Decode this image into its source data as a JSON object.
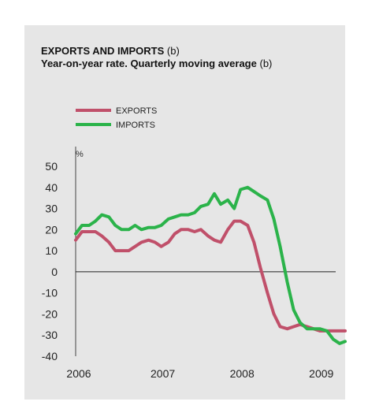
{
  "chart_data": {
    "type": "line",
    "title_bold": "EXPORTS AND IMPORTS",
    "title_suffix": "(b)",
    "subtitle_bold": "Year-on-year rate. Quarterly moving average",
    "subtitle_suffix": "(b)",
    "ylabel": "%",
    "xlabel": "",
    "ylim": [
      -40,
      50
    ],
    "yticks": [
      "50",
      "40",
      "30",
      "20",
      "10",
      "0",
      "-10",
      "-20",
      "-30",
      "-40"
    ],
    "ytick_values": [
      50,
      40,
      30,
      20,
      10,
      0,
      -10,
      -20,
      -30,
      -40
    ],
    "xticks": [
      "2006",
      "2007",
      "2008",
      "2009"
    ],
    "xtick_values": [
      2006.0,
      2007.0,
      2008.0,
      2009.0
    ],
    "xlim": [
      2006.0,
      2009.4
    ],
    "legend_position": "top-left",
    "grid": false,
    "zero_line": true,
    "series": [
      {
        "name": "EXPORTS",
        "color": "#c0506a",
        "x": [
          2006.0,
          2006.08,
          2006.17,
          2006.25,
          2006.33,
          2006.42,
          2006.5,
          2006.58,
          2006.67,
          2006.75,
          2006.83,
          2006.92,
          2007.0,
          2007.08,
          2007.17,
          2007.25,
          2007.33,
          2007.42,
          2007.5,
          2007.58,
          2007.67,
          2007.75,
          2007.83,
          2007.92,
          2008.0,
          2008.08,
          2008.17,
          2008.25,
          2008.33,
          2008.42,
          2008.5,
          2008.58,
          2008.67,
          2008.75,
          2008.83,
          2008.92,
          2009.0,
          2009.08,
          2009.17,
          2009.25,
          2009.33,
          2009.4
        ],
        "values": [
          15,
          19,
          19,
          19,
          17,
          14,
          10,
          10,
          10,
          12,
          14,
          15,
          14,
          12,
          14,
          18,
          20,
          20,
          19,
          20,
          17,
          15,
          14,
          20,
          24,
          24,
          22,
          14,
          2,
          -10,
          -20,
          -26,
          -27,
          -26,
          -25,
          -26,
          -27,
          -28,
          -28,
          -28,
          -28,
          -28
        ]
      },
      {
        "name": "IMPORTS",
        "color": "#2bb34a",
        "x": [
          2006.0,
          2006.08,
          2006.17,
          2006.25,
          2006.33,
          2006.42,
          2006.5,
          2006.58,
          2006.67,
          2006.75,
          2006.83,
          2006.92,
          2007.0,
          2007.08,
          2007.17,
          2007.25,
          2007.33,
          2007.42,
          2007.5,
          2007.58,
          2007.67,
          2007.75,
          2007.83,
          2007.92,
          2008.0,
          2008.08,
          2008.17,
          2008.25,
          2008.33,
          2008.42,
          2008.5,
          2008.58,
          2008.67,
          2008.75,
          2008.83,
          2008.92,
          2009.0,
          2009.08,
          2009.17,
          2009.25,
          2009.33,
          2009.4
        ],
        "values": [
          18,
          22,
          22,
          24,
          27,
          26,
          22,
          20,
          20,
          22,
          20,
          21,
          21,
          22,
          25,
          26,
          27,
          27,
          28,
          31,
          32,
          37,
          32,
          34,
          30,
          39,
          40,
          38,
          36,
          34,
          25,
          12,
          -5,
          -18,
          -24,
          -27,
          -27,
          -27,
          -28,
          -32,
          -34,
          -33
        ]
      }
    ]
  }
}
